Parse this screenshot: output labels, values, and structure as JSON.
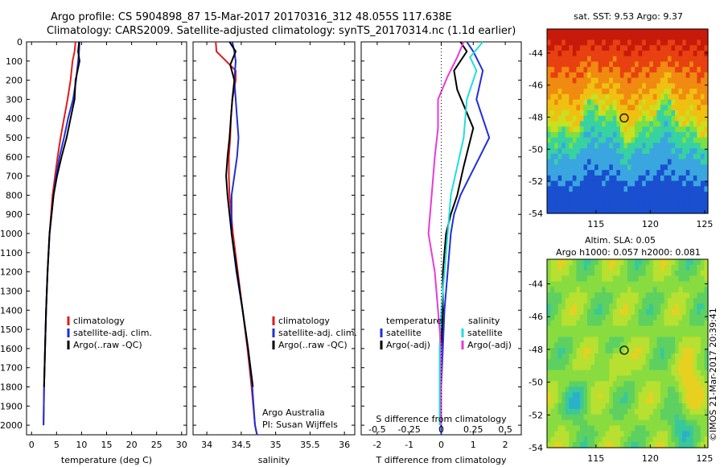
{
  "header": {
    "line1": "Argo profile: CS 5904898_87 15-Mar-2017 20170316_312 48.055S 117.638E",
    "line2": "Climatology: CARS2009. Satellite-adjusted climatology: synTS_20170314.nc (1.1d earlier)"
  },
  "colors": {
    "climatology": "#e01b1b",
    "satellite": "#1f2fd8",
    "argo": "#000000",
    "satellite_sal": "#22dddd",
    "argo_sal": "#e83ad8"
  },
  "chart_data": [
    {
      "type": "line",
      "id": "temperature",
      "xlabel": "temperature (deg C)",
      "ylabel": "",
      "xlim": [
        -1,
        31
      ],
      "ylim": [
        2050,
        0
      ],
      "xticks": [
        "0",
        "5",
        "10",
        "15",
        "20",
        "25",
        "30"
      ],
      "yticks": [
        "0",
        "100",
        "200",
        "300",
        "400",
        "500",
        "600",
        "700",
        "800",
        "900",
        "1000",
        "1100",
        "1200",
        "1300",
        "1400",
        "1500",
        "1600",
        "1700",
        "1800",
        "1900",
        "2000"
      ],
      "legend": [
        "climatology",
        "satellite-adj. clim.",
        "Argo(..raw -QC)"
      ],
      "series": [
        {
          "name": "climatology",
          "color_key": "climatology",
          "x": [
            8.8,
            8.6,
            8.2,
            7.8,
            7.2,
            6.5,
            5.8,
            5.2,
            4.7,
            4.2,
            3.6,
            3.2,
            2.9,
            2.7,
            2.5,
            2.4
          ],
          "y": [
            0,
            50,
            100,
            200,
            300,
            400,
            500,
            600,
            700,
            800,
            1000,
            1200,
            1400,
            1600,
            1800,
            2000
          ]
        },
        {
          "name": "satellite-adj. clim.",
          "color_key": "satellite",
          "x": [
            9.6,
            9.5,
            9.3,
            8.9,
            8.3,
            7.3,
            6.5,
            5.6,
            4.9,
            4.4,
            3.6,
            3.2,
            2.9,
            2.7,
            2.5,
            2.4
          ],
          "y": [
            0,
            50,
            100,
            200,
            300,
            400,
            500,
            600,
            700,
            800,
            1000,
            1200,
            1400,
            1600,
            1800,
            2000
          ]
        },
        {
          "name": "Argo(..raw -QC)",
          "color_key": "argo",
          "x": [
            9.5,
            9.3,
            9.6,
            8.8,
            8.6,
            7.8,
            7.0,
            6.0,
            5.1,
            4.4,
            3.6,
            3.2,
            2.9,
            2.7,
            2.5
          ],
          "y": [
            0,
            50,
            100,
            200,
            300,
            400,
            500,
            600,
            700,
            800,
            1000,
            1200,
            1400,
            1600,
            1800
          ]
        }
      ],
      "annotation": []
    },
    {
      "type": "line",
      "id": "salinity",
      "xlabel": "salinity",
      "ylabel": "",
      "xlim": [
        33.8,
        36.15
      ],
      "ylim": [
        2050,
        0
      ],
      "xticks": [
        "34",
        "34.5",
        "35",
        "35.5",
        "36"
      ],
      "legend": [
        "climatology",
        "satellite-adj. clim.",
        "Argo(..raw -QC)"
      ],
      "series": [
        {
          "name": "climatology",
          "color_key": "climatology",
          "x": [
            34.13,
            34.14,
            34.42,
            34.42,
            34.37,
            34.35,
            34.34,
            34.32,
            34.32,
            34.33,
            34.38,
            34.45,
            34.52,
            34.59,
            34.65,
            34.7,
            34.73
          ],
          "y": [
            0,
            50,
            150,
            200,
            300,
            400,
            500,
            600,
            700,
            800,
            1000,
            1200,
            1400,
            1600,
            1800,
            2000,
            2050
          ]
        },
        {
          "name": "satellite-adj. clim.",
          "color_key": "satellite",
          "x": [
            34.37,
            34.4,
            34.42,
            34.4,
            34.42,
            34.44,
            34.46,
            34.44,
            34.4,
            34.36,
            34.36,
            34.43,
            34.52,
            34.6,
            34.66,
            34.7,
            34.73
          ],
          "y": [
            0,
            50,
            100,
            200,
            300,
            400,
            500,
            600,
            700,
            800,
            1000,
            1200,
            1400,
            1600,
            1800,
            2000,
            2050
          ]
        },
        {
          "name": "Argo(..raw -QC)",
          "color_key": "argo",
          "x": [
            34.33,
            34.42,
            34.34,
            34.4,
            34.37,
            34.35,
            34.33,
            34.3,
            34.28,
            34.3,
            34.36,
            34.44,
            34.52,
            34.6,
            34.67
          ],
          "y": [
            0,
            50,
            120,
            200,
            300,
            400,
            500,
            600,
            700,
            800,
            1000,
            1200,
            1400,
            1600,
            1800
          ]
        }
      ],
      "annotation": [
        "Argo Australia",
        "PI: Susan Wijffels"
      ]
    },
    {
      "type": "line",
      "id": "difference",
      "xlabel": "T difference from climatology",
      "xlabel_top": "S difference from climatology",
      "xlim": [
        -2.5,
        2.5
      ],
      "ylim": [
        2050,
        0
      ],
      "xticks": [
        "-2",
        "-1",
        "0",
        "1",
        "2"
      ],
      "sticks": [
        "-0.5",
        "-0.25",
        "0",
        "0.25",
        "0.5"
      ],
      "legend_headers": [
        "temperature",
        "salinity"
      ],
      "legend": [
        "satellite",
        "Argo(-adj)",
        "satellite",
        "Argo(-adj)"
      ],
      "series": [
        {
          "name": "satellite",
          "group": "temperature",
          "color_key": "satellite",
          "x": [
            0.8,
            1.0,
            1.3,
            1.1,
            1.5,
            1.2,
            0.9,
            0.6,
            0.4,
            0.3,
            0.2,
            0.1,
            0.05,
            0.0,
            0.0,
            0.0
          ],
          "y": [
            0,
            50,
            150,
            300,
            500,
            600,
            700,
            800,
            900,
            1000,
            1200,
            1400,
            1600,
            1800,
            2000,
            2050
          ]
        },
        {
          "name": "Argo(-adj)",
          "group": "temperature",
          "color_key": "argo",
          "x": [
            0.6,
            0.8,
            0.4,
            0.5,
            1.0,
            0.7,
            0.5,
            0.3,
            0.15,
            0.05,
            0.05,
            0.0,
            0.0,
            0.0
          ],
          "y": [
            0,
            50,
            150,
            250,
            450,
            650,
            800,
            900,
            1000,
            1200,
            1400,
            1600,
            1800,
            2000
          ]
        },
        {
          "name": "satellite",
          "group": "salinity",
          "color_key": "satellite_sal",
          "x": [
            1.3,
            0.9,
            1.1,
            0.8,
            0.7,
            0.5,
            0.3,
            0.2,
            0.1,
            0.0,
            -0.05,
            -0.05,
            -0.05
          ],
          "y": [
            0,
            80,
            150,
            300,
            500,
            650,
            800,
            1000,
            1200,
            1400,
            1600,
            1800,
            2000
          ]
        },
        {
          "name": "Argo(-adj)",
          "group": "salinity",
          "color_key": "argo_sal",
          "x": [
            0.7,
            0.5,
            0.2,
            -0.1,
            -0.1,
            -0.2,
            -0.3,
            -0.4,
            -0.2,
            -0.1,
            0.0,
            0.0,
            0.0
          ],
          "y": [
            0,
            80,
            180,
            300,
            450,
            600,
            800,
            1000,
            1200,
            1400,
            1600,
            1800,
            2000
          ]
        }
      ]
    }
  ],
  "maps": [
    {
      "id": "sst",
      "title": "sat. SST: 9.53 Argo: 9.37",
      "yticks": [
        "-44",
        "-46",
        "-48",
        "-50",
        "-52",
        "-54"
      ],
      "xticks": [
        "115",
        "120",
        "125"
      ],
      "marker": {
        "lon": 117.6,
        "lat": -48.05
      }
    },
    {
      "id": "sla",
      "title_line1": "Altim. SLA: 0.05",
      "title_line2": "Argo h1000: 0.057 h2000: 0.081",
      "yticks": [
        "-44",
        "-46",
        "-48",
        "-50",
        "-52",
        "-54"
      ],
      "xticks": [
        "115",
        "120",
        "125"
      ],
      "marker": {
        "lon": 117.6,
        "lat": -48.05
      }
    }
  ],
  "credit": "©IMOS 21-Mar-2017 20:39:41"
}
